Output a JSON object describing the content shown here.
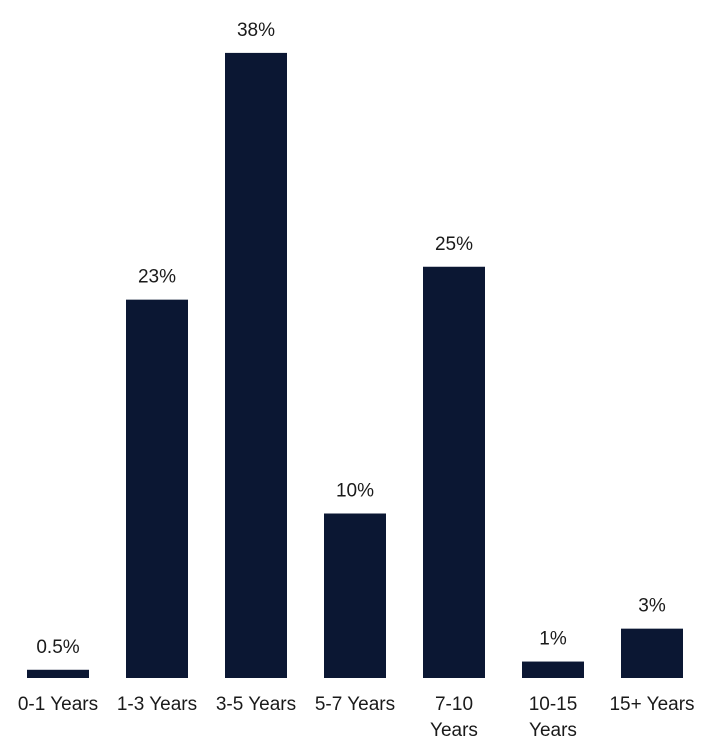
{
  "chart_data": {
    "type": "bar",
    "categories": [
      "0-1 Years",
      "1-3 Years",
      "3-5 Years",
      "5-7 Years",
      "7-10 Years",
      "10-15 Years",
      "15+ Years"
    ],
    "values": [
      0.5,
      23,
      38,
      10,
      25,
      1,
      3
    ],
    "data_labels": [
      "0.5%",
      "23%",
      "38%",
      "10%",
      "25%",
      "1%",
      "3%"
    ],
    "title": "",
    "xlabel": "",
    "ylabel": "",
    "bar_color": "#0b1733",
    "grid": false,
    "legend": "none"
  }
}
